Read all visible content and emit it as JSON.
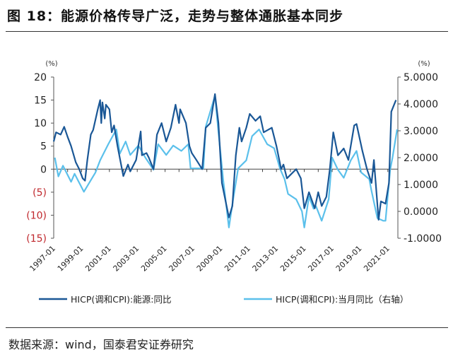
{
  "title": "图 18：能源价格传导广泛，走势与整体通胀基本同步",
  "source": "数据来源：wind，国泰君安证券研究",
  "chart_data": {
    "type": "line",
    "title": "",
    "left_unit": "(%)",
    "right_unit": "(%)",
    "left_ylim": [
      -15,
      20
    ],
    "right_ylim": [
      -1,
      5
    ],
    "left_ticks": [
      20,
      15,
      10,
      5,
      0,
      -5,
      -10,
      -15
    ],
    "left_tick_labels": [
      "20",
      "15",
      "10",
      "5",
      "0",
      "(5)",
      "(10)",
      "(15)"
    ],
    "right_ticks": [
      5,
      4,
      3,
      2,
      1,
      0,
      -1
    ],
    "right_tick_labels": [
      "5.0000",
      "4.0000",
      "3.0000",
      "2.0000",
      "1.0000",
      "0.0000",
      "-1.0000"
    ],
    "x_tick_labels": [
      "1997-01",
      "1999-01",
      "2001-01",
      "2003-01",
      "2005-01",
      "2007-01",
      "2009-01",
      "2011-01",
      "2013-01",
      "2015-01",
      "2017-01",
      "2019-01",
      "2021-01"
    ],
    "grid": false,
    "legend_position": "bottom",
    "colors": {
      "negative_label": "#c0282d",
      "series1": "#1a5796",
      "series2": "#5bc0eb"
    },
    "series": [
      {
        "name": "HICP(调和CPI):能源:同比",
        "axis": "left",
        "x": [
          "1997-01",
          "1997-03",
          "1997-07",
          "1997-10",
          "1998-01",
          "1998-04",
          "1998-08",
          "1998-11",
          "1999-02",
          "1999-04",
          "1999-06",
          "1999-09",
          "1999-11",
          "2000-03",
          "2000-05",
          "2000-06",
          "2000-07",
          "2000-09",
          "2000-10",
          "2001-01",
          "2001-03",
          "2001-05",
          "2001-08",
          "2002-01",
          "2002-05",
          "2002-07",
          "2002-12",
          "2003-04",
          "2003-05",
          "2003-09",
          "2003-11",
          "2004-03",
          "2004-06",
          "2004-10",
          "2005-02",
          "2005-06",
          "2005-10",
          "2006-01",
          "2006-02",
          "2006-07",
          "2006-10",
          "2006-12",
          "2007-04",
          "2007-09",
          "2007-12",
          "2008-04",
          "2008-08",
          "2008-11",
          "2009-02",
          "2009-08",
          "2009-11",
          "2010-02",
          "2010-05",
          "2010-07",
          "2010-11",
          "2011-02",
          "2011-07",
          "2011-11",
          "2012-02",
          "2012-09",
          "2013-01",
          "2013-05",
          "2013-07",
          "2013-10",
          "2014-02",
          "2014-06",
          "2014-10",
          "2015-01",
          "2015-05",
          "2015-10",
          "2016-01",
          "2016-04",
          "2016-08",
          "2016-11",
          "2017-02",
          "2017-06",
          "2017-11",
          "2018-03",
          "2018-08",
          "2018-10",
          "2019-03",
          "2019-07",
          "2019-11",
          "2020-01",
          "2020-05",
          "2020-07",
          "2020-11",
          "2021-02",
          "2021-04",
          "2021-08"
        ],
        "values": [
          6,
          8,
          7.5,
          9.2,
          7,
          5,
          1.5,
          0,
          -2,
          -2.5,
          2,
          7.5,
          8.5,
          13,
          15,
          10,
          14.5,
          11,
          14,
          13,
          8,
          9.5,
          5,
          -1.5,
          1,
          -0.5,
          2,
          8.2,
          3,
          3.5,
          2.5,
          0,
          7.5,
          10,
          6,
          9,
          14,
          10,
          13,
          10,
          5,
          3.5,
          2,
          0,
          9,
          10,
          16.3,
          10,
          -3,
          -10.5,
          -8,
          3,
          9,
          6,
          9,
          12,
          10.5,
          11.5,
          8,
          9,
          5,
          0,
          1,
          -2,
          -1,
          0,
          -2,
          -8.5,
          -5,
          -8.5,
          -5,
          -8,
          -6,
          0,
          8,
          3,
          4.5,
          2,
          9.5,
          9.8,
          4,
          0,
          -3,
          2,
          -11,
          -7,
          -7.5,
          -3,
          12.5,
          15
        ]
      },
      {
        "name": "HICP(调和CPI):当月同比（右轴）",
        "axis": "right",
        "x": [
          "1997-02",
          "1997-05",
          "1997-09",
          "1998-04",
          "1998-07",
          "1999-03",
          "2000-01",
          "2000-05",
          "2000-12",
          "2001-07",
          "2001-10",
          "2002-03",
          "2002-07",
          "2003-02",
          "2003-08",
          "2004-03",
          "2004-07",
          "2005-02",
          "2005-08",
          "2006-03",
          "2006-09",
          "2006-11",
          "2007-10",
          "2007-12",
          "2008-08",
          "2008-11",
          "2009-03",
          "2009-08",
          "2009-12",
          "2010-04",
          "2010-11",
          "2011-04",
          "2011-10",
          "2012-05",
          "2012-11",
          "2013-04",
          "2013-08",
          "2013-11",
          "2014-06",
          "2014-11",
          "2015-01",
          "2015-05",
          "2015-09",
          "2015-11",
          "2016-04",
          "2016-10",
          "2017-01",
          "2017-06",
          "2017-11",
          "2018-05",
          "2018-10",
          "2019-02",
          "2019-09",
          "2019-11",
          "2020-04",
          "2020-09",
          "2020-11",
          "2021-03",
          "2021-05",
          "2021-09"
        ],
        "values": [
          2.0,
          1.3,
          1.7,
          1.1,
          1.4,
          0.73,
          1.45,
          1.9,
          2.5,
          3.05,
          2.15,
          2.6,
          2.1,
          2.45,
          2.0,
          1.55,
          2.5,
          2.1,
          2.45,
          2.25,
          2.5,
          1.6,
          1.6,
          3.15,
          4.3,
          2.95,
          1.2,
          -0.6,
          0.55,
          1.6,
          1.9,
          2.8,
          3.05,
          2.5,
          2.35,
          1.6,
          1.2,
          0.65,
          0.45,
          0.0,
          -0.6,
          0.55,
          0.1,
          0.2,
          -0.35,
          0.45,
          2.0,
          1.55,
          1.25,
          1.9,
          2.25,
          1.45,
          1.2,
          0.75,
          -0.25,
          -0.35,
          -0.35,
          1.55,
          2.0,
          3.05
        ]
      }
    ]
  }
}
